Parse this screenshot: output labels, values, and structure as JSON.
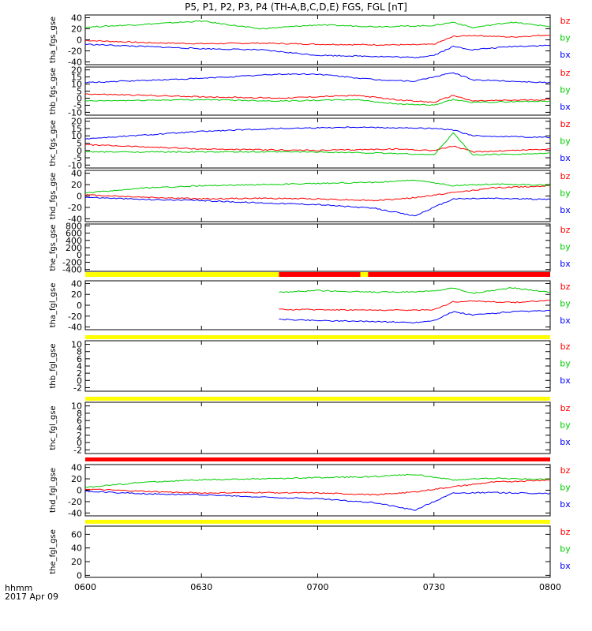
{
  "title": "P5, P1, P2, P3, P4 (TH-A,B,C,D,E) FGS, FGL [nT]",
  "footer": {
    "label": "hhmm",
    "date": "2017 Apr 09"
  },
  "colors": {
    "bz": "#ff0000",
    "by": "#00cc00",
    "bx": "#0000ff",
    "bar_yellow": "#ffff00",
    "bar_red": "#ff0000",
    "axis": "#000000"
  },
  "chart_data": {
    "type": "line",
    "x_range": [
      "0600",
      "0800"
    ],
    "x_ticks": [
      "0600",
      "0630",
      "0700",
      "0730",
      "0800"
    ],
    "legend": [
      "bz",
      "by",
      "bx"
    ],
    "panels": [
      {
        "ylabel": "tha_fgs_gse",
        "ylim": [
          -45,
          45
        ],
        "yticks": [
          40,
          20,
          0,
          -20,
          -40
        ],
        "series": [
          {
            "name": "bz",
            "x": [
              "0600",
              "0615",
              "0630",
              "0645",
              "0700",
              "0715",
              "0725",
              "0730",
              "0735",
              "0740",
              "0750",
              "0800"
            ],
            "y": [
              -1,
              -5,
              -7,
              -6,
              -8,
              -9,
              -9,
              -8,
              6,
              8,
              5,
              9
            ]
          },
          {
            "name": "by",
            "x": [
              "0600",
              "0615",
              "0630",
              "0645",
              "0700",
              "0715",
              "0725",
              "0730",
              "0735",
              "0740",
              "0750",
              "0800"
            ],
            "y": [
              23,
              28,
              34,
              20,
              27,
              24,
              25,
              26,
              32,
              22,
              32,
              24
            ]
          },
          {
            "name": "bx",
            "x": [
              "0600",
              "0615",
              "0630",
              "0645",
              "0700",
              "0715",
              "0725",
              "0730",
              "0735",
              "0740",
              "0750",
              "0800"
            ],
            "y": [
              -8,
              -12,
              -16,
              -18,
              -28,
              -30,
              -32,
              -28,
              -12,
              -18,
              -12,
              -10
            ]
          }
        ]
      },
      {
        "ylabel": "thb_fgs_gse",
        "ylim": [
          -12,
          22
        ],
        "yticks": [
          20,
          15,
          10,
          5,
          0,
          -5,
          -10
        ],
        "series": [
          {
            "name": "bz",
            "x": [
              "0600",
              "0630",
              "0650",
              "0710",
              "0720",
              "0730",
              "0735",
              "0740",
              "0800"
            ],
            "y": [
              3,
              1,
              0,
              2,
              -1,
              -3,
              2,
              -2,
              -1
            ]
          },
          {
            "name": "by",
            "x": [
              "0600",
              "0630",
              "0650",
              "0710",
              "0720",
              "0730",
              "0735",
              "0740",
              "0800"
            ],
            "y": [
              -2,
              -1,
              -2,
              -1,
              -4,
              -5,
              -1,
              -3,
              -2
            ]
          },
          {
            "name": "bx",
            "x": [
              "0600",
              "0630",
              "0650",
              "0700",
              "0715",
              "0725",
              "0735",
              "0740",
              "0800"
            ],
            "y": [
              11,
              14,
              17,
              17,
              13,
              12,
              18,
              13,
              11
            ]
          }
        ]
      },
      {
        "ylabel": "thc_fgs_gse",
        "ylim": [
          -12,
          22
        ],
        "yticks": [
          20,
          15,
          10,
          5,
          0,
          -5,
          -10
        ],
        "series": [
          {
            "name": "bz",
            "x": [
              "0600",
              "0630",
              "0700",
              "0720",
              "0730",
              "0735",
              "0740",
              "0800"
            ],
            "y": [
              4,
              1,
              0,
              1,
              0,
              3,
              -1,
              1
            ]
          },
          {
            "name": "by",
            "x": [
              "0600",
              "0630",
              "0700",
              "0720",
              "0730",
              "0735",
              "0740",
              "0800"
            ],
            "y": [
              -1,
              -1,
              -1,
              -2,
              -3,
              12,
              -3,
              -2
            ]
          },
          {
            "name": "bx",
            "x": [
              "0600",
              "0630",
              "0650",
              "0710",
              "0730",
              "0735",
              "0740",
              "0800"
            ],
            "y": [
              8,
              13,
              15,
              16,
              15,
              14,
              10,
              9
            ]
          }
        ]
      },
      {
        "ylabel": "thd_fgs_gse",
        "ylim": [
          -45,
          45
        ],
        "yticks": [
          40,
          20,
          0,
          -20,
          -40
        ],
        "series": [
          {
            "name": "bz",
            "x": [
              "0600",
              "0615",
              "0630",
              "0645",
              "0700",
              "0715",
              "0725",
              "0735",
              "0745",
              "0800"
            ],
            "y": [
              2,
              -2,
              -5,
              -4,
              -5,
              -8,
              -3,
              6,
              14,
              18
            ]
          },
          {
            "name": "by",
            "x": [
              "0600",
              "0615",
              "0630",
              "0645",
              "0700",
              "0715",
              "0725",
              "0735",
              "0745",
              "0800"
            ],
            "y": [
              5,
              14,
              18,
              20,
              22,
              24,
              28,
              18,
              21,
              19
            ]
          },
          {
            "name": "bx",
            "x": [
              "0600",
              "0615",
              "0630",
              "0645",
              "0700",
              "0715",
              "0725",
              "0735",
              "0745",
              "0800"
            ],
            "y": [
              -2,
              -6,
              -8,
              -12,
              -15,
              -22,
              -35,
              -5,
              -4,
              -6
            ]
          }
        ]
      },
      {
        "ylabel": "the_fgs_gse",
        "ylim": [
          -450,
          850
        ],
        "yticks": [
          800,
          600,
          400,
          200,
          0,
          -200,
          -400
        ],
        "series": []
      },
      {
        "ylabel": "tha_fgl_gse",
        "ylim": [
          -45,
          45
        ],
        "yticks": [
          40,
          20,
          0,
          -20,
          -40
        ],
        "series": [
          {
            "name": "bz",
            "x": [
              "0650",
              "0700",
              "0715",
              "0725",
              "0730",
              "0735",
              "0740",
              "0750",
              "0800"
            ],
            "y": [
              -8,
              -8,
              -9,
              -9,
              -8,
              6,
              8,
              5,
              9
            ]
          },
          {
            "name": "by",
            "x": [
              "0650",
              "0700",
              "0715",
              "0725",
              "0730",
              "0735",
              "0740",
              "0750",
              "0800"
            ],
            "y": [
              24,
              27,
              24,
              25,
              26,
              32,
              22,
              32,
              24
            ]
          },
          {
            "name": "bx",
            "x": [
              "0650",
              "0700",
              "0715",
              "0725",
              "0730",
              "0735",
              "0740",
              "0750",
              "0800"
            ],
            "y": [
              -26,
              -28,
              -30,
              -32,
              -28,
              -12,
              -18,
              -12,
              -10
            ]
          }
        ]
      },
      {
        "ylabel": "thb_fgl_gse",
        "ylim": [
          -3,
          11
        ],
        "yticks": [
          10,
          8,
          6,
          4,
          2,
          0,
          -2
        ],
        "series": []
      },
      {
        "ylabel": "thc_fgl_gse",
        "ylim": [
          -3,
          11
        ],
        "yticks": [
          10,
          8,
          6,
          4,
          2,
          0,
          -2
        ],
        "series": []
      },
      {
        "ylabel": "thd_fgl_gse",
        "ylim": [
          -45,
          45
        ],
        "yticks": [
          40,
          20,
          0,
          -20,
          -40
        ],
        "series": [
          {
            "name": "bz",
            "x": [
              "0600",
              "0615",
              "0630",
              "0645",
              "0700",
              "0715",
              "0725",
              "0735",
              "0745",
              "0800"
            ],
            "y": [
              2,
              -2,
              -5,
              -4,
              -5,
              -8,
              -3,
              6,
              14,
              18
            ]
          },
          {
            "name": "by",
            "x": [
              "0600",
              "0615",
              "0630",
              "0645",
              "0700",
              "0715",
              "0725",
              "0735",
              "0745",
              "0800"
            ],
            "y": [
              5,
              14,
              18,
              20,
              22,
              24,
              28,
              18,
              21,
              19
            ]
          },
          {
            "name": "bx",
            "x": [
              "0600",
              "0615",
              "0630",
              "0645",
              "0700",
              "0715",
              "0725",
              "0735",
              "0745",
              "0800"
            ],
            "y": [
              -2,
              -6,
              -8,
              -12,
              -15,
              -22,
              -35,
              -5,
              -4,
              -6
            ]
          }
        ]
      },
      {
        "ylabel": "the_fgl_gse",
        "ylim": [
          -3,
          72
        ],
        "yticks": [
          60,
          40,
          20,
          0
        ],
        "series": []
      }
    ],
    "mode_bars": [
      {
        "after_panel": 4,
        "segments": [
          {
            "from": "0600",
            "to": "0650",
            "color": "yellow"
          },
          {
            "from": "0650",
            "to": "0711",
            "color": "red"
          },
          {
            "from": "0711",
            "to": "0713",
            "color": "yellow"
          },
          {
            "from": "0713",
            "to": "0800",
            "color": "red"
          }
        ]
      },
      {
        "after_panel": 5,
        "segments": [
          {
            "from": "0600",
            "to": "0800",
            "color": "yellow"
          }
        ]
      },
      {
        "after_panel": 6,
        "segments": [
          {
            "from": "0600",
            "to": "0800",
            "color": "yellow"
          }
        ]
      },
      {
        "after_panel": 7,
        "segments": [
          {
            "from": "0600",
            "to": "0800",
            "color": "red"
          }
        ]
      },
      {
        "after_panel": 8,
        "segments": [
          {
            "from": "0600",
            "to": "0800",
            "color": "yellow"
          }
        ]
      }
    ]
  }
}
